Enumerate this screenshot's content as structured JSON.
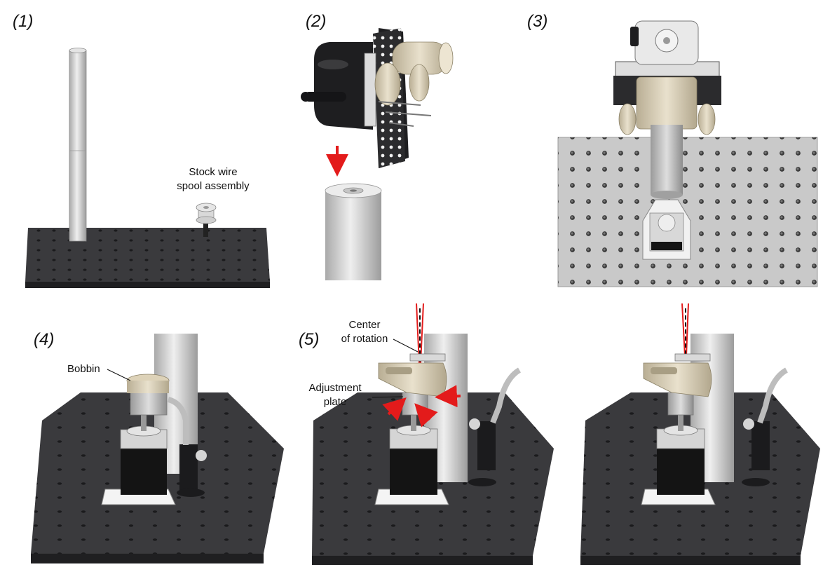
{
  "steps": {
    "s1": "(1)",
    "s2": "(2)",
    "s3": "(3)",
    "s4": "(4)",
    "s5": "(5)"
  },
  "callouts": {
    "spool_line1": "Stock wire",
    "spool_line2": "spool assembly",
    "bobbin": "Bobbin",
    "center_line1": "Center",
    "center_line2": "of rotation",
    "adjust_line1": "Adjustment",
    "adjust_line2": "plate"
  },
  "colors": {
    "breadboard": "#3a3a3d",
    "hole": "#1b1b1d",
    "post": "#c9c9c9",
    "metal": "#bdbdbd",
    "beige": "#d8cfb8",
    "motor": "#111111",
    "arrow": "#e31b1b",
    "laser": "#e31b1b"
  }
}
